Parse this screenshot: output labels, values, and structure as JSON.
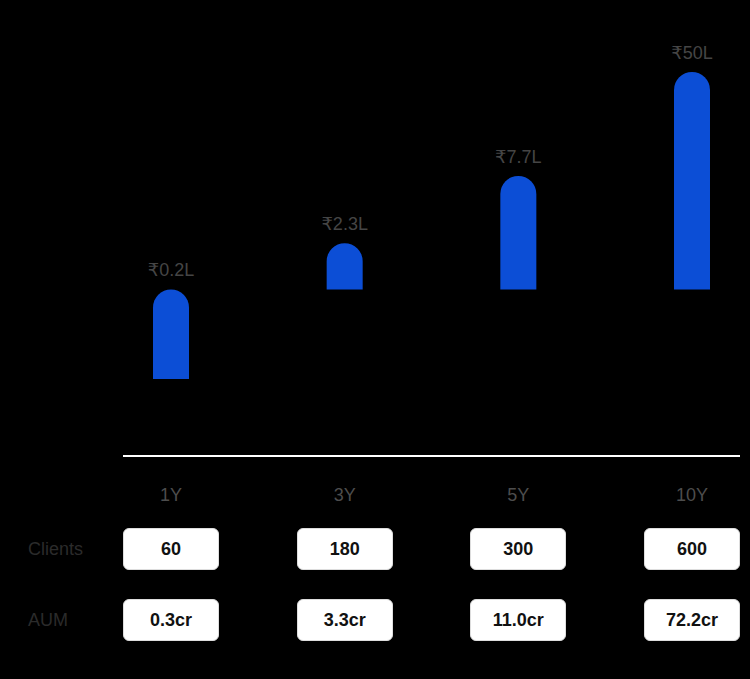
{
  "chart_data": {
    "type": "bar",
    "categories": [
      "1Y",
      "3Y",
      "5Y",
      "10Y"
    ],
    "values": [
      0.2,
      2.3,
      7.7,
      50
    ],
    "value_labels": [
      "₹0.2L",
      "₹2.3L",
      "₹7.7L",
      "₹50L"
    ],
    "color": "#0c4ed6",
    "log": "y",
    "ylim": [
      0.05,
      50
    ],
    "grid": false,
    "data_labels": true,
    "tick_labels": "x",
    "rows": [
      {
        "name": "Clients",
        "values": [
          60,
          180,
          300,
          600
        ]
      },
      {
        "name": "AUM",
        "values": [
          0.3,
          3.3,
          11.0,
          72.2
        ],
        "value_labels": [
          "0.3cr",
          "3.3cr",
          "11.0cr",
          "72.2cr"
        ]
      }
    ]
  }
}
